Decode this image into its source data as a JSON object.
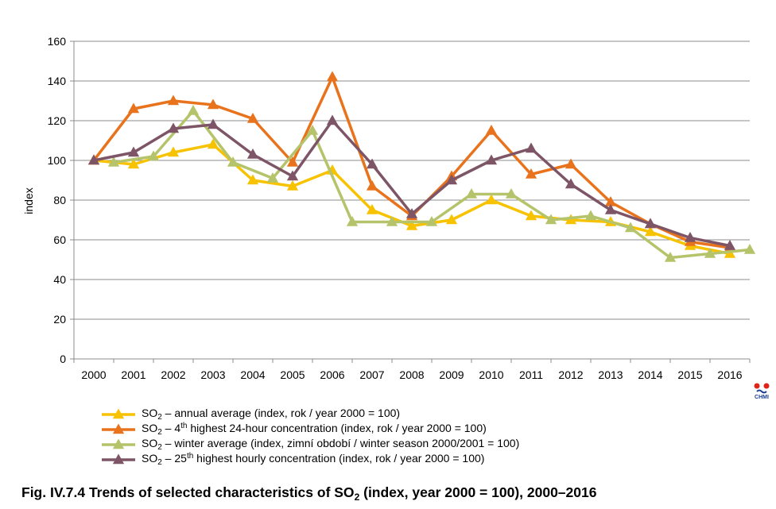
{
  "chart_data": {
    "type": "line",
    "ylabel": "index",
    "ylim": [
      0,
      160
    ],
    "yticks": [
      0,
      20,
      40,
      60,
      80,
      100,
      120,
      140,
      160
    ],
    "grid": true,
    "categories": [
      "2000",
      "2001",
      "2002",
      "2003",
      "2004",
      "2005",
      "2006",
      "2007",
      "2008",
      "2009",
      "2010",
      "2011",
      "2012",
      "2013",
      "2014",
      "2015",
      "2016"
    ],
    "series": [
      {
        "name_prefix": "SO",
        "name_sub": "2",
        "name_mid": " – annual average (index, rok / year 2000 = 100)",
        "name_sup": "",
        "name_suffix": "",
        "color": "#f7c200",
        "offset": 0,
        "values": [
          100,
          98,
          104,
          108,
          90,
          87,
          95,
          75,
          67,
          70,
          80,
          72,
          70,
          69,
          64,
          57,
          53
        ]
      },
      {
        "name_prefix": "SO",
        "name_sub": "2",
        "name_mid": " – 4",
        "name_sup": "th",
        "name_suffix": " highest 24-hour concentration (index, rok / year 2000 = 100)",
        "color": "#e8731c",
        "offset": 0,
        "values": [
          100,
          126,
          130,
          128,
          121,
          99,
          142,
          87,
          72,
          92,
          115,
          93,
          98,
          79,
          68,
          59,
          56
        ]
      },
      {
        "name_prefix": "SO",
        "name_sub": "2",
        "name_mid": " – winter average (index, zimní období / winter season 2000/2001 = 100)",
        "name_sup": "",
        "name_suffix": "",
        "color": "#b5c46a",
        "offset": 0.5,
        "values": [
          99,
          102,
          125,
          99,
          91,
          115,
          69,
          69,
          69,
          83,
          83,
          70,
          72,
          66,
          51,
          53,
          55
        ]
      },
      {
        "name_prefix": "SO",
        "name_sub": "2",
        "name_mid": " – 25",
        "name_sup": "th",
        "name_suffix": " highest hourly concentration (index, rok / year 2000 = 100)",
        "color": "#7d5566",
        "offset": 0,
        "values": [
          100,
          104,
          116,
          118,
          103,
          92,
          120,
          98,
          73,
          90,
          100,
          106,
          88,
          75,
          68,
          61,
          57
        ]
      }
    ]
  },
  "caption": {
    "prefix": "Fig. IV.7.4  Trends of selected characteristics of SO",
    "sub": "2",
    "suffix": " (index, year 2000 = 100), 2000–2016"
  },
  "logo": {
    "text": "CHMI",
    "colors": [
      "#e2231a",
      "#1a3f8f"
    ]
  }
}
